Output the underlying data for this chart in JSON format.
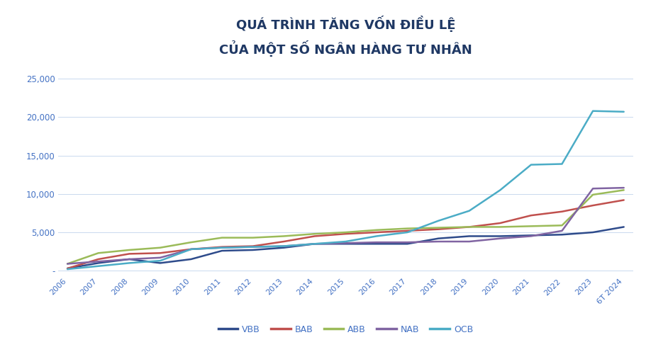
{
  "title_line1": "QUÁ TRÌNH TĂNG VỐN ĐIỀU LỆ",
  "title_line2": "CỦA MỘT SỐ NGÂN HÀNG TƯ NHÂN",
  "years": [
    "2006",
    "2007",
    "2008",
    "2009",
    "2010",
    "2011",
    "2012",
    "2013",
    "2014",
    "2015",
    "2016",
    "2017",
    "2018",
    "2019",
    "2020",
    "2021",
    "2022",
    "2023",
    "6T 2024"
  ],
  "series": {
    "VBB": [
      300,
      1000,
      1500,
      1000,
      1500,
      2600,
      2700,
      3000,
      3500,
      3500,
      3500,
      3500,
      4200,
      4500,
      4500,
      4600,
      4700,
      5000,
      5700
    ],
    "BAB": [
      300,
      1500,
      2200,
      2300,
      2800,
      3100,
      3200,
      3800,
      4500,
      4800,
      5000,
      5200,
      5400,
      5700,
      6200,
      7200,
      7700,
      8500,
      9200
    ],
    "ABB": [
      900,
      2300,
      2700,
      3000,
      3700,
      4300,
      4300,
      4500,
      4800,
      5000,
      5300,
      5500,
      5600,
      5700,
      5700,
      5800,
      5900,
      9900,
      10500
    ],
    "NAB": [
      900,
      1200,
      1500,
      1700,
      2800,
      3000,
      3100,
      3200,
      3500,
      3600,
      3700,
      3700,
      3800,
      3800,
      4200,
      4500,
      5200,
      10700,
      10800
    ],
    "OCB": [
      200,
      600,
      1000,
      1300,
      2800,
      3000,
      3100,
      3200,
      3500,
      3800,
      4500,
      5000,
      6500,
      7800,
      10500,
      13800,
      13900,
      20800,
      20700
    ]
  },
  "colors": {
    "VBB": "#2E4B8B",
    "BAB": "#C0504D",
    "ABB": "#9BBB59",
    "NAB": "#8064A2",
    "OCB": "#4BACC6"
  },
  "ylim": [
    -500,
    27000
  ],
  "yticks": [
    0,
    5000,
    10000,
    15000,
    20000,
    25000
  ],
  "ytick_labels": [
    "-",
    "5,000",
    "10,000",
    "15,000",
    "20,000",
    "25,000"
  ],
  "background_color": "#FFFFFF",
  "title_color": "#1F3864",
  "grid_color": "#C9D9EE",
  "tick_color": "#4472C4",
  "legend_order": [
    "VBB",
    "BAB",
    "ABB",
    "NAB",
    "OCB"
  ]
}
